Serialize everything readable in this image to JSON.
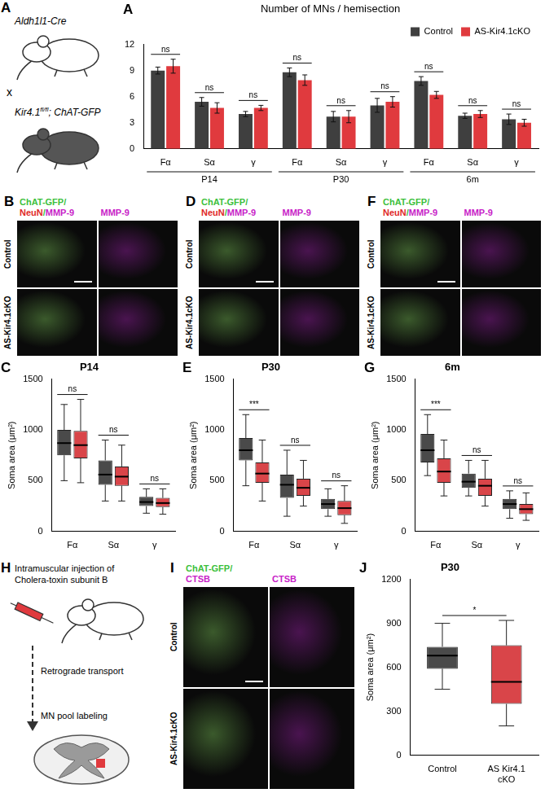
{
  "mice": {
    "panel": "A",
    "cre_line": "Aldh1l1-Cre",
    "cross": "x",
    "flox_gene": "Kir4.1",
    "flox_sup": "fl/fl",
    "flox_rest": "; ChAT-GFP"
  },
  "images": [
    {
      "panel": "B",
      "columns": [
        {
          "lines": [
            [
              {
                "text": "ChAT-GFP/",
                "color": "#3cbf3c"
              }
            ],
            [
              {
                "text": "NeuN",
                "color": "#e02828"
              },
              {
                "text": "/",
                "color": "#3cbf3c"
              },
              {
                "text": "MMP-9",
                "color": "#c81ec8"
              }
            ]
          ]
        },
        {
          "lines": [
            [
              {
                "text": "MMP-9",
                "color": "#c81ec8"
              }
            ]
          ]
        }
      ],
      "rows": [
        "Control",
        "AS-Kir4.1cKO"
      ]
    },
    {
      "panel": "D",
      "columns": [
        {
          "lines": [
            [
              {
                "text": "ChAT-GFP/",
                "color": "#3cbf3c"
              }
            ],
            [
              {
                "text": "NeuN",
                "color": "#e02828"
              },
              {
                "text": "/",
                "color": "#3cbf3c"
              },
              {
                "text": "MMP-9",
                "color": "#c81ec8"
              }
            ]
          ]
        },
        {
          "lines": [
            [
              {
                "text": "MMP-9",
                "color": "#c81ec8"
              }
            ]
          ]
        }
      ],
      "rows": [
        "Control",
        "AS-Kir4.1cKO"
      ]
    },
    {
      "panel": "F",
      "columns": [
        {
          "lines": [
            [
              {
                "text": "ChAT-GFP/",
                "color": "#3cbf3c"
              }
            ],
            [
              {
                "text": "NeuN",
                "color": "#e02828"
              },
              {
                "text": "/",
                "color": "#3cbf3c"
              },
              {
                "text": "MMP-9",
                "color": "#c81ec8"
              }
            ]
          ]
        },
        {
          "lines": [
            [
              {
                "text": "MMP-9",
                "color": "#c81ec8"
              }
            ]
          ]
        }
      ],
      "rows": [
        "Control",
        "AS-Kir4.1cKO"
      ]
    },
    {
      "panel": "I",
      "columns": [
        {
          "lines": [
            [
              {
                "text": "ChAT-GFP/",
                "color": "#3cbf3c"
              }
            ],
            [
              {
                "text": "CTSB",
                "color": "#c81ec8"
              }
            ]
          ]
        },
        {
          "lines": [
            [
              {
                "text": "CTSB",
                "color": "#c81ec8"
              }
            ]
          ]
        }
      ],
      "rows": [
        "Control",
        "AS-Kir4.1cKO"
      ]
    }
  ],
  "diagram": {
    "panel": "H",
    "lines": [
      "Intramuscular injection of",
      "Cholera-toxin subunit B"
    ],
    "steps": [
      "Retrograde transport",
      "MN pool labeling"
    ]
  },
  "chart_data": [
    {
      "panel": "A",
      "type": "bar",
      "title": "Number of MNs / hemisection",
      "categories": [
        "Fα",
        "Sα",
        "γ",
        "Fα",
        "Sα",
        "γ",
        "Fα",
        "Sα",
        "γ"
      ],
      "groups": [
        "P14",
        "P30",
        "6m"
      ],
      "series": [
        {
          "name": "Control",
          "color": "#3f3f3f",
          "values": [
            9.0,
            5.4,
            4.0,
            8.8,
            3.7,
            5.0,
            7.8,
            3.8,
            3.4
          ],
          "errors": [
            0.4,
            0.5,
            0.3,
            0.5,
            0.6,
            0.8,
            0.5,
            0.3,
            0.6
          ]
        },
        {
          "name": "AS-Kir4.1cKO",
          "color": "#e03a3e",
          "values": [
            9.5,
            4.7,
            4.7,
            7.9,
            3.7,
            5.4,
            6.2,
            4.0,
            3.0
          ],
          "errors": [
            0.8,
            0.6,
            0.3,
            0.6,
            0.7,
            0.6,
            0.4,
            0.4,
            0.4
          ]
        }
      ],
      "significance": [
        "ns",
        "ns",
        "ns",
        "ns",
        "ns",
        "ns",
        "ns",
        "ns",
        "ns"
      ],
      "ylim": [
        0,
        12
      ],
      "yticks": [
        0,
        3,
        6,
        9,
        12
      ],
      "grid": false,
      "legend": "top-right"
    },
    {
      "panel": "C",
      "type": "box",
      "title": "P14",
      "y_label": "Soma area (μm²)",
      "categories": [
        "Fα",
        "Sα",
        "γ"
      ],
      "series": [
        {
          "color": "#4a4a4a",
          "boxes": [
            {
              "min": 500,
              "q1": 750,
              "median": 870,
              "q3": 1000,
              "max": 1250
            },
            {
              "min": 300,
              "q1": 460,
              "median": 560,
              "q3": 700,
              "max": 900
            },
            {
              "min": 180,
              "q1": 250,
              "median": 290,
              "q3": 340,
              "max": 420
            }
          ]
        },
        {
          "color": "#d94549",
          "boxes": [
            {
              "min": 480,
              "q1": 720,
              "median": 850,
              "q3": 990,
              "max": 1300
            },
            {
              "min": 300,
              "q1": 450,
              "median": 540,
              "q3": 640,
              "max": 850
            },
            {
              "min": 170,
              "q1": 240,
              "median": 280,
              "q3": 330,
              "max": 420
            }
          ]
        }
      ],
      "significance": [
        "ns",
        "ns",
        "ns"
      ],
      "ylim": [
        0,
        1500
      ],
      "yticks": [
        0,
        500,
        1000,
        1500
      ],
      "grid": false
    },
    {
      "panel": "E",
      "type": "box",
      "title": "P30",
      "y_label": "Soma area (μm²)",
      "categories": [
        "Fα",
        "Sα",
        "γ"
      ],
      "series": [
        {
          "color": "#4a4a4a",
          "boxes": [
            {
              "min": 450,
              "q1": 700,
              "median": 800,
              "q3": 920,
              "max": 1150
            },
            {
              "min": 150,
              "q1": 330,
              "median": 460,
              "q3": 560,
              "max": 800
            },
            {
              "min": 150,
              "q1": 220,
              "median": 270,
              "q3": 320,
              "max": 420
            }
          ]
        },
        {
          "color": "#d94549",
          "boxes": [
            {
              "min": 300,
              "q1": 480,
              "median": 570,
              "q3": 680,
              "max": 900
            },
            {
              "min": 250,
              "q1": 350,
              "median": 430,
              "q3": 520,
              "max": 700
            },
            {
              "min": 80,
              "q1": 160,
              "median": 230,
              "q3": 300,
              "max": 450
            }
          ]
        }
      ],
      "significance": [
        "***",
        "ns",
        "ns"
      ],
      "ylim": [
        0,
        1500
      ],
      "yticks": [
        0,
        500,
        1000,
        1500
      ],
      "grid": false
    },
    {
      "panel": "G",
      "type": "box",
      "title": "6m",
      "y_label": "Soma area (μm²)",
      "categories": [
        "Fα",
        "Sα",
        "γ"
      ],
      "series": [
        {
          "color": "#4a4a4a",
          "boxes": [
            {
              "min": 550,
              "q1": 680,
              "median": 800,
              "q3": 960,
              "max": 1150
            },
            {
              "min": 350,
              "q1": 430,
              "median": 490,
              "q3": 570,
              "max": 700
            },
            {
              "min": 130,
              "q1": 220,
              "median": 270,
              "q3": 320,
              "max": 400
            }
          ]
        },
        {
          "color": "#d94549",
          "boxes": [
            {
              "min": 350,
              "q1": 480,
              "median": 590,
              "q3": 720,
              "max": 900
            },
            {
              "min": 250,
              "q1": 350,
              "median": 450,
              "q3": 520,
              "max": 700
            },
            {
              "min": 110,
              "q1": 170,
              "median": 220,
              "q3": 270,
              "max": 380
            }
          ]
        }
      ],
      "significance": [
        "***",
        "ns",
        "ns"
      ],
      "ylim": [
        0,
        1500
      ],
      "yticks": [
        0,
        500,
        1000,
        1500
      ],
      "grid": false
    },
    {
      "panel": "J",
      "type": "box",
      "title": "P30",
      "y_label": "Soma area (μm²)",
      "categories": [
        "Control",
        [
          "AS Kir4.1",
          "cKO"
        ]
      ],
      "boxes": [
        {
          "min": 450,
          "q1": 590,
          "median": 680,
          "q3": 740,
          "max": 900
        },
        {
          "min": 200,
          "q1": 350,
          "median": 500,
          "q3": 750,
          "max": 920
        }
      ],
      "colors": [
        "#4a4a4a",
        "#d94549"
      ],
      "significance": [
        "*"
      ],
      "ylim": [
        0,
        1200
      ],
      "yticks": [
        0,
        300,
        600,
        900,
        1200
      ],
      "grid": false
    }
  ]
}
